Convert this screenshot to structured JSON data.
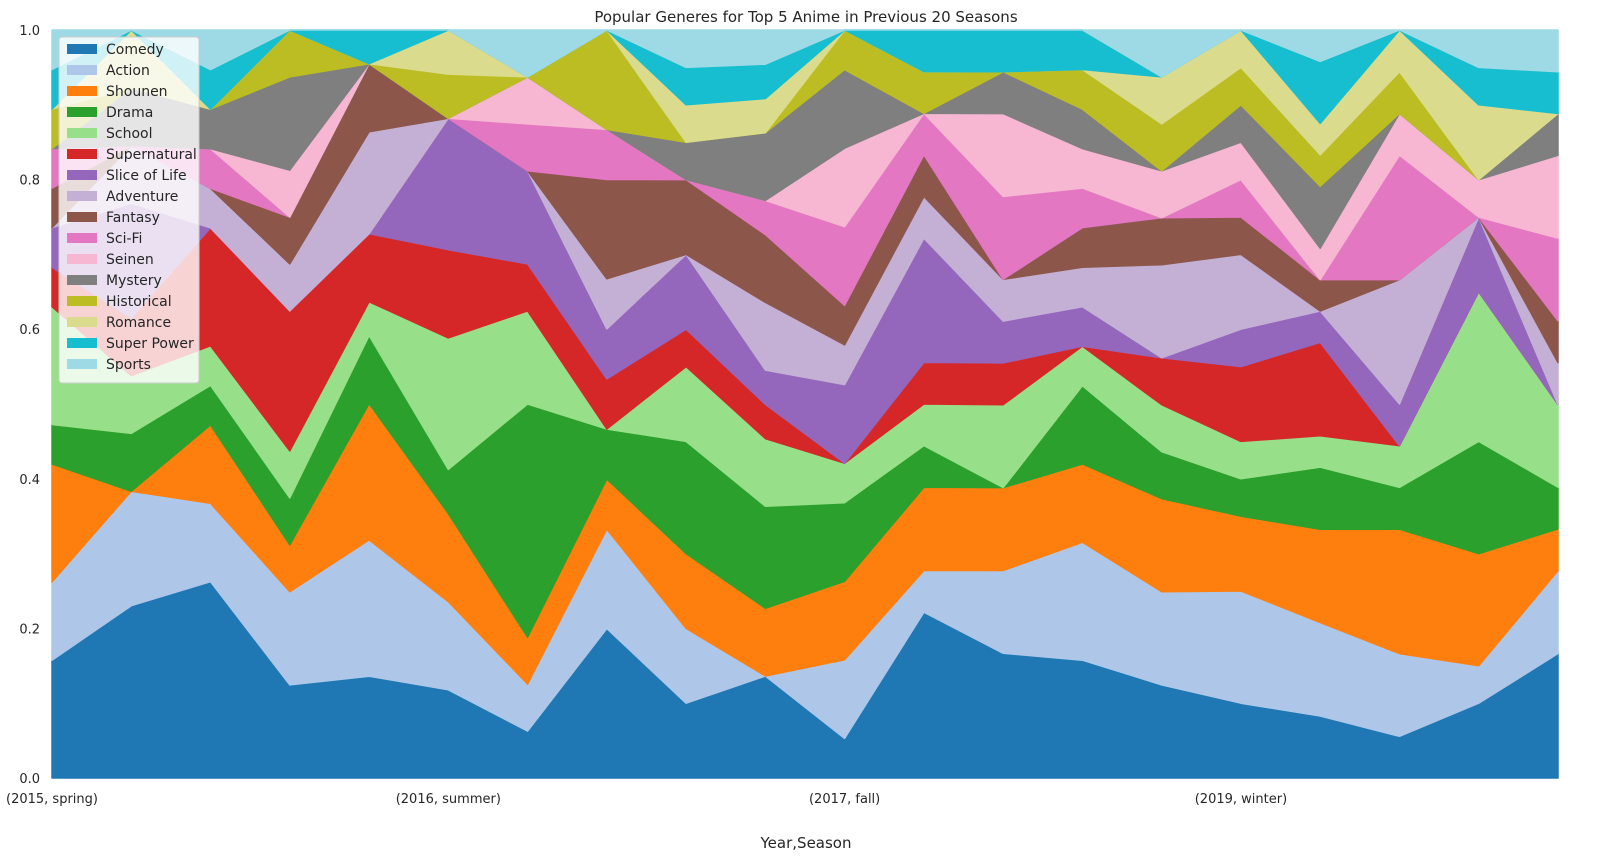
{
  "chart_data": {
    "type": "area",
    "stacked": true,
    "normalized": true,
    "title": "Popular Generes for Top 5 Anime in Previous 20 Seasons",
    "xlabel": "Year,Season",
    "ylabel": "",
    "ylim": [
      0,
      1
    ],
    "yticks": [
      "0.0",
      "0.2",
      "0.4",
      "0.6",
      "0.8",
      "1.0"
    ],
    "xtick_labels": [
      {
        "index": 0,
        "label": "(2015, spring)"
      },
      {
        "index": 5,
        "label": "(2016, summer)"
      },
      {
        "index": 10,
        "label": "(2017, fall)"
      },
      {
        "index": 15,
        "label": "(2019, winter)"
      }
    ],
    "grid": false,
    "legend_position": "top-left",
    "series": [
      {
        "name": "Comedy",
        "color": "#1f77b4",
        "values": [
          0.158,
          0.167,
          0.263,
          0.125,
          0.136,
          0.118,
          0.063,
          0.2,
          0.1,
          0.143,
          0.053,
          0.235,
          0.167,
          0.158,
          0.125,
          0.1,
          0.083,
          0.056,
          0.1,
          0.167
        ]
      },
      {
        "name": "Action",
        "color": "#aec7e8",
        "values": [
          0.105,
          0.111,
          0.105,
          0.125,
          0.182,
          0.118,
          0.063,
          0.133,
          0.1,
          0.0,
          0.105,
          0.059,
          0.111,
          0.158,
          0.125,
          0.15,
          0.125,
          0.111,
          0.05,
          0.111
        ]
      },
      {
        "name": "Shounen",
        "color": "#ff7f0e",
        "values": [
          0.158,
          0.0,
          0.105,
          0.063,
          0.182,
          0.118,
          0.063,
          0.067,
          0.1,
          0.095,
          0.105,
          0.118,
          0.111,
          0.105,
          0.125,
          0.1,
          0.125,
          0.167,
          0.15,
          0.056
        ]
      },
      {
        "name": "Drama",
        "color": "#2ca02c",
        "values": [
          0.053,
          0.056,
          0.053,
          0.063,
          0.091,
          0.059,
          0.313,
          0.067,
          0.15,
          0.143,
          0.105,
          0.059,
          0.0,
          0.105,
          0.063,
          0.05,
          0.083,
          0.056,
          0.15,
          0.056
        ]
      },
      {
        "name": "School",
        "color": "#98df8a",
        "values": [
          0.158,
          0.056,
          0.053,
          0.063,
          0.045,
          0.176,
          0.125,
          0.0,
          0.1,
          0.095,
          0.053,
          0.059,
          0.111,
          0.053,
          0.063,
          0.05,
          0.042,
          0.056,
          0.2,
          0.111
        ]
      },
      {
        "name": "Supernatural",
        "color": "#d62728",
        "values": [
          0.053,
          0.056,
          0.158,
          0.188,
          0.091,
          0.118,
          0.063,
          0.067,
          0.05,
          0.048,
          0.0,
          0.059,
          0.056,
          0.0,
          0.063,
          0.1,
          0.125,
          0.0,
          0.0,
          0.0
        ]
      },
      {
        "name": "Slice of Life",
        "color": "#9467bd",
        "values": [
          0.053,
          0.111,
          0.0,
          0.0,
          0.0,
          0.176,
          0.125,
          0.067,
          0.1,
          0.048,
          0.105,
          0.176,
          0.056,
          0.053,
          0.0,
          0.05,
          0.042,
          0.056,
          0.1,
          0.0
        ]
      },
      {
        "name": "Adventure",
        "color": "#c5b0d5",
        "values": [
          0.0,
          0.056,
          0.053,
          0.063,
          0.136,
          0.0,
          0.0,
          0.067,
          0.0,
          0.095,
          0.053,
          0.059,
          0.056,
          0.053,
          0.125,
          0.1,
          0.0,
          0.167,
          0.0,
          0.056
        ]
      },
      {
        "name": "Fantasy",
        "color": "#8c564b",
        "values": [
          0.053,
          0.0,
          0.0,
          0.063,
          0.091,
          0.0,
          0.0,
          0.133,
          0.1,
          0.095,
          0.053,
          0.059,
          0.0,
          0.053,
          0.063,
          0.05,
          0.042,
          0.0,
          0.0,
          0.056
        ]
      },
      {
        "name": "Sci-Fi",
        "color": "#e377c2",
        "values": [
          0.053,
          0.0,
          0.053,
          0.0,
          0.0,
          0.0,
          0.063,
          0.067,
          0.0,
          0.048,
          0.105,
          0.059,
          0.111,
          0.053,
          0.0,
          0.05,
          0.0,
          0.167,
          0.0,
          0.111
        ]
      },
      {
        "name": "Seinen",
        "color": "#f7b6d2",
        "values": [
          0.0,
          0.0,
          0.0,
          0.063,
          0.0,
          0.0,
          0.063,
          0.0,
          0.0,
          0.0,
          0.105,
          0.0,
          0.111,
          0.053,
          0.063,
          0.05,
          0.042,
          0.056,
          0.05,
          0.111
        ]
      },
      {
        "name": "Mystery",
        "color": "#7f7f7f",
        "values": [
          0.0,
          0.056,
          0.053,
          0.125,
          0.0,
          0.0,
          0.0,
          0.0,
          0.05,
          0.095,
          0.105,
          0.0,
          0.056,
          0.053,
          0.0,
          0.05,
          0.083,
          0.0,
          0.0,
          0.056
        ]
      },
      {
        "name": "Historical",
        "color": "#bcbd22",
        "values": [
          0.053,
          0.0,
          0.0,
          0.063,
          0.0,
          0.059,
          0.0,
          0.133,
          0.0,
          0.0,
          0.053,
          0.059,
          0.0,
          0.053,
          0.063,
          0.05,
          0.042,
          0.056,
          0.0,
          0.0
        ]
      },
      {
        "name": "Romance",
        "color": "#dbdb8d",
        "values": [
          0.0,
          0.056,
          0.0,
          0.0,
          0.0,
          0.059,
          0.0,
          0.0,
          0.05,
          0.048,
          0.0,
          0.0,
          0.0,
          0.0,
          0.063,
          0.05,
          0.042,
          0.056,
          0.1,
          0.0
        ]
      },
      {
        "name": "Super Power",
        "color": "#17becf",
        "values": [
          0.053,
          0.0,
          0.053,
          0.0,
          0.045,
          0.0,
          0.0,
          0.0,
          0.05,
          0.048,
          0.0,
          0.059,
          0.056,
          0.053,
          0.0,
          0.0,
          0.083,
          0.0,
          0.05,
          0.056
        ]
      },
      {
        "name": "Sports",
        "color": "#9edae5",
        "values": [
          0.053,
          0.0,
          0.053,
          0.0,
          0.0,
          0.0,
          0.063,
          0.0,
          0.05,
          0.048,
          0.0,
          0.0,
          0.0,
          0.0,
          0.063,
          0.0,
          0.042,
          0.0,
          0.05,
          0.056
        ]
      }
    ]
  }
}
